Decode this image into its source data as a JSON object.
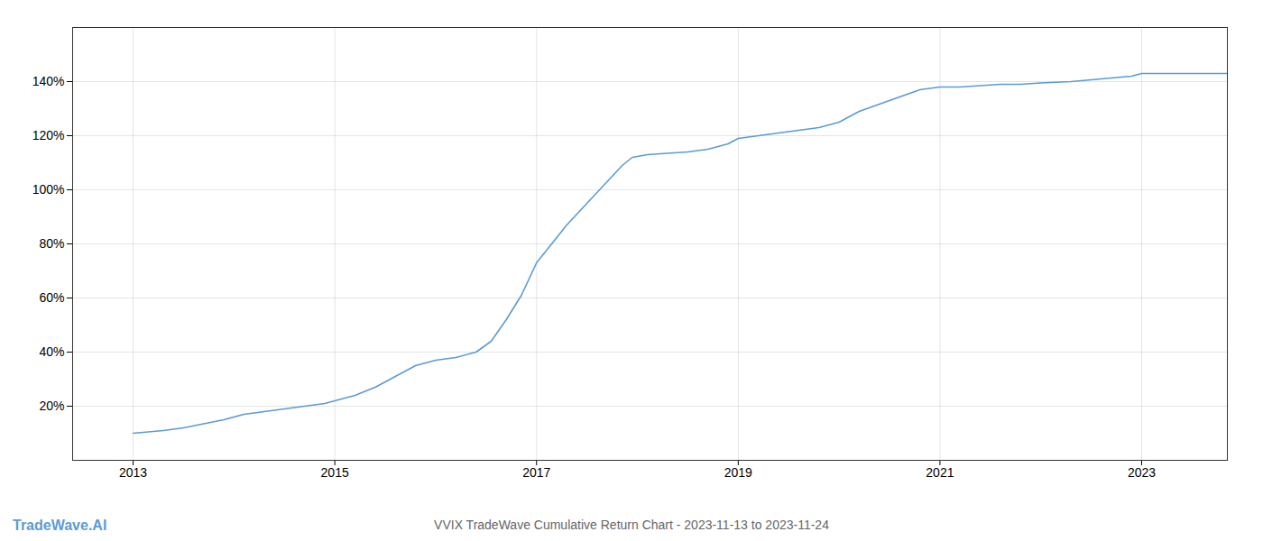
{
  "chart_data": {
    "type": "line",
    "title": "VVIX TradeWave Cumulative Return Chart - 2023-11-13 to 2023-11-24",
    "annotations": [
      {
        "text": "TradeWave.AI",
        "color": "#5b9bd5"
      }
    ],
    "x": [
      2013.0,
      2013.15,
      2013.3,
      2013.5,
      2013.7,
      2013.9,
      2014.1,
      2014.3,
      2014.5,
      2014.7,
      2014.9,
      2015.0,
      2015.2,
      2015.4,
      2015.6,
      2015.8,
      2016.0,
      2016.2,
      2016.4,
      2016.55,
      2016.7,
      2016.85,
      2017.0,
      2017.15,
      2017.3,
      2017.45,
      2017.6,
      2017.75,
      2017.85,
      2017.95,
      2018.1,
      2018.3,
      2018.5,
      2018.7,
      2018.9,
      2019.0,
      2019.2,
      2019.4,
      2019.6,
      2019.8,
      2020.0,
      2020.2,
      2020.5,
      2020.8,
      2021.0,
      2021.2,
      2021.4,
      2021.6,
      2021.8,
      2022.0,
      2022.3,
      2022.6,
      2022.9,
      2023.0,
      2023.2,
      2023.5,
      2023.85
    ],
    "values": [
      10,
      10.5,
      11,
      12,
      13.5,
      15,
      17,
      18,
      19,
      20,
      21,
      22,
      24,
      27,
      31,
      35,
      37,
      38,
      40,
      44,
      52,
      61,
      73,
      80,
      87,
      93,
      99,
      105,
      109,
      112,
      113,
      113.5,
      114,
      115,
      117,
      119,
      120,
      121,
      122,
      123,
      125,
      129,
      133,
      137,
      138,
      138,
      138.5,
      139,
      139,
      139.5,
      140,
      141,
      142,
      143,
      143,
      143,
      143
    ],
    "color": "#5b9bd5",
    "xlim": [
      2012.4,
      2023.85
    ],
    "xticks": [
      2013,
      2015,
      2017,
      2019,
      2021,
      2023
    ],
    "ylim": [
      0,
      160
    ],
    "yticks": [
      {
        "value": 20,
        "label": "20%"
      },
      {
        "value": 40,
        "label": "40%"
      },
      {
        "value": 60,
        "label": "60%"
      },
      {
        "value": 80,
        "label": "80%"
      },
      {
        "value": 100,
        "label": "100%"
      },
      {
        "value": 120,
        "label": "120%"
      },
      {
        "value": 140,
        "label": "140%"
      }
    ],
    "grid": true
  }
}
